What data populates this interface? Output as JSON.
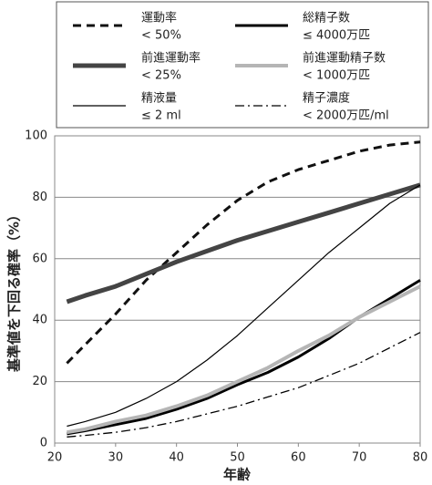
{
  "chart_data": {
    "type": "line",
    "y_label": "基準値を下回る確率（%）",
    "x_label": "年齢",
    "x": [
      22,
      25,
      30,
      35,
      40,
      45,
      50,
      55,
      60,
      65,
      70,
      75,
      80
    ],
    "xlim": [
      20,
      80
    ],
    "xticks": [
      20,
      30,
      40,
      50,
      60,
      70,
      80
    ],
    "ylim": [
      0,
      100
    ],
    "yticks": [
      0,
      20,
      40,
      60,
      80,
      100
    ],
    "grid": true,
    "series": [
      {
        "name": "運動率",
        "threshold": "< 50%",
        "color": "#111111",
        "style": "dashed",
        "width": 3,
        "values": [
          26,
          32,
          42,
          53,
          62,
          71,
          79,
          85,
          89,
          92,
          95,
          97,
          98
        ]
      },
      {
        "name": "総精子数",
        "threshold": "≤ 4000万匹",
        "color": "#000000",
        "style": "solid",
        "width": 3,
        "values": [
          3,
          4,
          6,
          8,
          11,
          14.5,
          19,
          23,
          28,
          34,
          41,
          47,
          53
        ]
      },
      {
        "name": "前進運動率",
        "threshold": "< 25%",
        "color": "#444444",
        "style": "solid",
        "width": 5,
        "values": [
          46,
          48,
          51,
          55,
          59,
          62.5,
          66,
          69,
          72,
          75,
          78,
          81,
          84
        ]
      },
      {
        "name": "前進運動精子数",
        "threshold": "< 1000万匹",
        "color": "#b5b5b5",
        "style": "solid",
        "width": 4,
        "values": [
          3.5,
          4.5,
          7,
          9,
          12,
          15.5,
          20,
          24.5,
          30,
          35,
          41,
          46,
          51
        ]
      },
      {
        "name": "精液量",
        "threshold": "≤ 2 ml",
        "color": "#000000",
        "style": "solid",
        "width": 1.2,
        "values": [
          5.5,
          7,
          10,
          14.5,
          20,
          27,
          35,
          44,
          53,
          62,
          70,
          78,
          84
        ]
      },
      {
        "name": "精子濃度",
        "threshold": "< 2000万匹/ml",
        "color": "#000000",
        "style": "dashdot",
        "width": 1.3,
        "values": [
          2,
          2.5,
          3.5,
          5,
          7,
          9.5,
          12,
          15,
          18,
          22,
          26,
          31,
          36
        ]
      }
    ]
  }
}
